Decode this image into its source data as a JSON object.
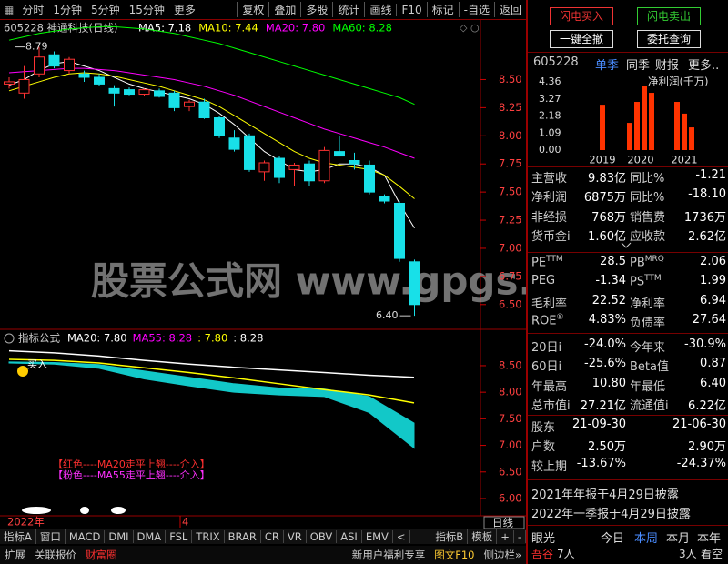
{
  "toolbar": {
    "left": [
      "分时",
      "1分钟",
      "5分钟",
      "15分钟",
      "更多"
    ],
    "right": [
      "复权",
      "叠加",
      "多股",
      "统计",
      "画线",
      "F10",
      "标记",
      "-自选",
      "返回"
    ]
  },
  "main_chart": {
    "type": "candlestick",
    "title": "605228 神通科技(日线)",
    "open": [
      8.46,
      8.38,
      8.55,
      8.72,
      8.58,
      8.55,
      8.52,
      8.42,
      8.41,
      8.37,
      8.4,
      8.38,
      8.26,
      8.3,
      8.16,
      7.98,
      8.0,
      7.68,
      7.8,
      7.7,
      7.75,
      7.6,
      7.86,
      7.78,
      7.74,
      7.46,
      7.4,
      6.88
    ],
    "high": [
      8.52,
      8.62,
      8.79,
      8.75,
      8.7,
      8.58,
      8.55,
      8.45,
      8.43,
      8.42,
      8.42,
      8.4,
      8.32,
      8.33,
      8.18,
      8.05,
      8.02,
      7.78,
      7.82,
      7.76,
      7.78,
      7.9,
      8.0,
      7.85,
      7.78,
      7.48,
      7.42,
      6.9
    ],
    "low": [
      8.42,
      8.33,
      8.52,
      8.6,
      8.55,
      8.48,
      8.44,
      8.26,
      8.36,
      8.35,
      8.34,
      8.22,
      8.22,
      8.15,
      7.98,
      7.86,
      7.68,
      7.6,
      7.58,
      7.55,
      7.55,
      7.58,
      7.82,
      7.7,
      7.48,
      7.4,
      6.88,
      6.4
    ],
    "close": [
      8.48,
      8.5,
      8.7,
      8.62,
      8.68,
      8.52,
      8.46,
      8.38,
      8.37,
      8.41,
      8.35,
      8.25,
      8.3,
      8.16,
      8.0,
      7.88,
      7.7,
      7.76,
      7.63,
      7.74,
      7.6,
      7.87,
      7.82,
      7.75,
      7.5,
      7.42,
      6.91,
      6.5
    ],
    "series": [
      {
        "legend": "MA5: 7.18",
        "color": "#ffffff",
        "values": [
          8.45,
          8.5,
          8.58,
          8.64,
          8.66,
          8.62,
          8.58,
          8.52,
          8.46,
          8.42,
          8.39,
          8.36,
          8.33,
          8.28,
          8.2,
          8.1,
          7.98,
          7.86,
          7.78,
          7.7,
          7.68,
          7.7,
          7.75,
          7.75,
          7.72,
          7.65,
          7.4,
          7.18
        ]
      },
      {
        "legend": "MA10: 7.44",
        "color": "#ffff00",
        "values": [
          8.4,
          8.44,
          8.48,
          8.52,
          8.55,
          8.56,
          8.55,
          8.53,
          8.5,
          8.47,
          8.44,
          8.4,
          8.36,
          8.32,
          8.26,
          8.18,
          8.1,
          8.02,
          7.94,
          7.86,
          7.8,
          7.76,
          7.74,
          7.72,
          7.7,
          7.65,
          7.55,
          7.44
        ]
      },
      {
        "legend": "MA20: 7.80",
        "color": "#ff00ff",
        "values": [
          8.56,
          8.57,
          8.58,
          8.59,
          8.6,
          8.6,
          8.59,
          8.58,
          8.56,
          8.54,
          8.52,
          8.5,
          8.47,
          8.44,
          8.4,
          8.36,
          8.31,
          8.26,
          8.21,
          8.16,
          8.11,
          8.06,
          8.02,
          7.98,
          7.94,
          7.9,
          7.85,
          7.8
        ]
      },
      {
        "legend": "MA60: 8.28",
        "color": "#00ff00",
        "values": [
          8.85,
          8.88,
          8.91,
          8.93,
          8.95,
          8.96,
          8.97,
          8.97,
          8.96,
          8.95,
          8.93,
          8.91,
          8.88,
          8.85,
          8.82,
          8.78,
          8.74,
          8.7,
          8.66,
          8.62,
          8.58,
          8.54,
          8.5,
          8.46,
          8.42,
          8.38,
          8.34,
          8.28
        ]
      }
    ],
    "ylim": [
      6.28,
      8.9
    ],
    "yticks": [
      {
        "value": 8.5,
        "label": "8.50"
      },
      8.25,
      {
        "value": 8,
        "label": "8.00"
      },
      7.75,
      {
        "value": 7.5,
        "label": "7.50"
      },
      7.25,
      {
        "value": 7,
        "label": "7.00"
      },
      6.75,
      {
        "value": 6.5,
        "label": "6.50"
      }
    ],
    "annotations": [
      "8.79",
      "6.40"
    ],
    "watermark": "股票公式网 www.gpgs.com.cn"
  },
  "indicator_chart": {
    "type": "line",
    "title": "指标公式",
    "legend": [
      {
        "text": "MA20: 7.80",
        "color": "#ffffff"
      },
      {
        "text": "MA55: 8.28",
        "color": "#ff00ff"
      },
      {
        "text": ": 7.80",
        "color": "#ffff00"
      },
      {
        "text": ": 8.28",
        "color": "#ffffff"
      }
    ],
    "series": [
      {
        "color": "#ffffff",
        "values": [
          8.78,
          8.74,
          8.68,
          8.6,
          8.53,
          8.47,
          8.42,
          8.37,
          8.32,
          8.28
        ]
      },
      {
        "color": "#ffff00",
        "values": [
          8.62,
          8.6,
          8.55,
          8.46,
          8.37,
          8.27,
          8.16,
          8.05,
          7.95,
          7.8
        ]
      }
    ],
    "band": {
      "color": "#12c8c8",
      "upper": [
        8.57,
        8.56,
        8.52,
        8.4,
        8.28,
        8.16,
        8.08,
        8.06,
        7.92,
        7.42
      ],
      "lower": [
        8.55,
        8.53,
        8.45,
        8.25,
        8.12,
        8.0,
        7.95,
        7.92,
        7.62,
        6.95
      ]
    },
    "signal": "买入",
    "notes": [
      {
        "text": "【红色----MA20走平上翘----介入】",
        "color": "#ff3030"
      },
      {
        "text": "【粉色----MA55走平上翘----介入】",
        "color": "#ff30ff"
      }
    ],
    "ylim": [
      5.76,
      8.91
    ],
    "yticks": [
      {
        "value": 8.5,
        "label": "8.50"
      },
      {
        "value": 8,
        "label": "8.00"
      },
      {
        "value": 7.5,
        "label": "7.50"
      },
      {
        "value": 7,
        "label": "7.00"
      },
      {
        "value": 6.5,
        "label": "6.50"
      },
      {
        "value": 6,
        "label": "6.00"
      }
    ]
  },
  "time_axis": {
    "labels": [
      "2022年",
      "4"
    ],
    "period": "日线"
  },
  "tabs": {
    "left": [
      "指标A",
      "窗口",
      "MACD",
      "DMI",
      "DMA",
      "FSL",
      "TRIX",
      "BRAR",
      "CR",
      "VR",
      "OBV",
      "ASI",
      "EMV",
      "<"
    ],
    "right": [
      "指标B",
      "模板",
      "+",
      "-"
    ]
  },
  "status_bar": {
    "left": [
      "扩展",
      "关联报价",
      "财富圈"
    ],
    "right": [
      "新用户福利专享",
      "图文F10",
      "侧边栏»"
    ]
  },
  "trade_buttons": [
    "闪电买入",
    "闪电卖出",
    "一键全撤",
    "委托查询"
  ],
  "finance": {
    "code": "605228",
    "tabs": [
      "单季",
      "同季",
      "财报",
      "更多.."
    ],
    "chart": {
      "type": "bar",
      "title": "净利润(千万)",
      "color": "#ff3300",
      "ylim": [
        0,
        4.36
      ],
      "yticks": [
        4.36,
        3.27,
        2.18,
        1.09,
        {
          "value": 0,
          "label": "0.00"
        }
      ],
      "groups": [
        {
          "label": "2019",
          "values": [
            2.9
          ]
        },
        {
          "label": "2020",
          "values": [
            1.74,
            3.08,
            4.07,
            3.66
          ]
        },
        {
          "label": "2021",
          "values": [
            3.08,
            2.33,
            1.45
          ]
        }
      ]
    }
  },
  "fundamentals": {
    "sections": [
      [
        [
          "主营收",
          "9.83亿",
          "同比%",
          "-1.21"
        ],
        [
          "净利润",
          "6875万",
          "同比%",
          "-18.10"
        ],
        [
          "非经损",
          "768万",
          "销售费",
          "1736万"
        ],
        [
          "货币金i",
          "1.60亿",
          "应收款",
          "2.62亿"
        ]
      ],
      [
        [
          {
            "text": "PE",
            "sup": "TTM"
          },
          "28.5",
          {
            "text": "PB",
            "sup": "MRQ"
          },
          "2.06"
        ],
        [
          "PEG",
          "-1.34",
          {
            "text": "PS",
            "sup": "TTM"
          },
          "1.99"
        ],
        [
          "毛利率",
          "22.52",
          "净利率",
          "6.94"
        ],
        [
          {
            "text": "ROE",
            "sup": "⑤"
          },
          "4.83%",
          "负债率",
          "27.64"
        ]
      ],
      [
        [
          "20日i",
          "-24.0%",
          "今年来",
          "-30.9%"
        ],
        [
          "60日i",
          "-25.6%",
          "Beta值",
          "0.87"
        ],
        [
          "年最高",
          "10.80",
          "年最低",
          "6.40"
        ],
        [
          "总市值i",
          "27.21亿",
          "流通值i",
          "6.22亿"
        ]
      ],
      [
        [
          "股东",
          "21-09-30",
          "21-06-30"
        ],
        [
          "户数",
          "2.50万",
          "2.90万"
        ],
        [
          "较上期",
          "-13.67%",
          "-24.37%"
        ]
      ]
    ],
    "disclosures": [
      "2021年年报于4月29日披露",
      "2022年一季报于4月29日披露"
    ]
  },
  "sentiment": {
    "header": [
      "眼光",
      "今日",
      "本周",
      "本月",
      "本年"
    ],
    "row": [
      "吾谷",
      "7人",
      "3人",
      "看空"
    ]
  }
}
